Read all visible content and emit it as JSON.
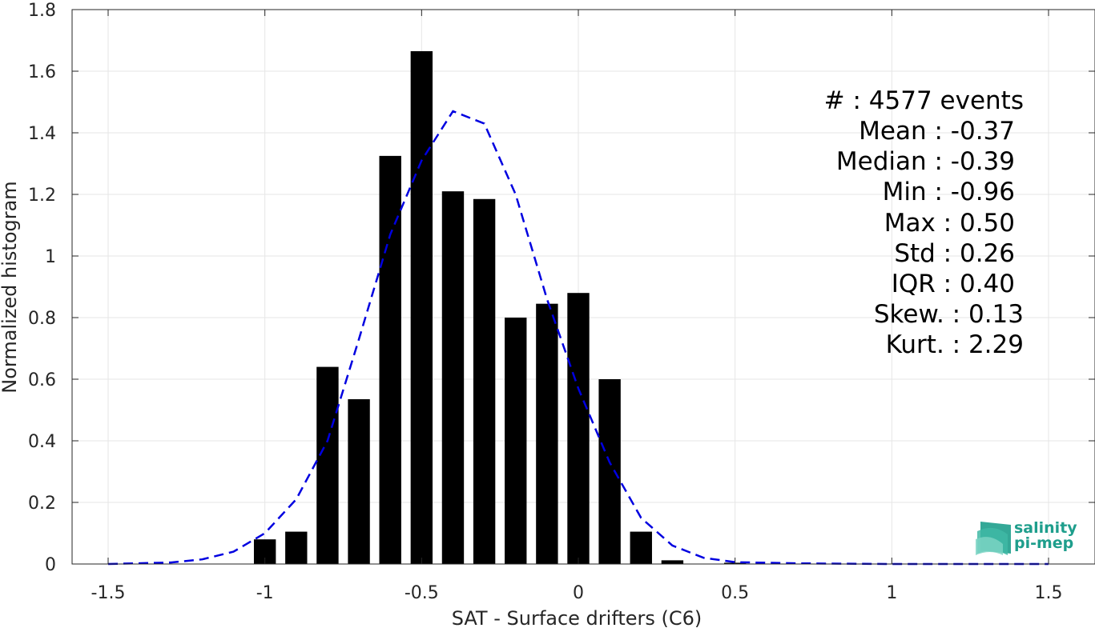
{
  "chart_data": {
    "type": "bar",
    "xlabel": "SAT - Surface drifters (C6)",
    "ylabel": "Normalized histogram",
    "xlim": [
      -1.5,
      1.5
    ],
    "ylim": [
      0,
      1.8
    ],
    "grid": true,
    "xticks": [
      -1.5,
      -1,
      -0.5,
      0,
      0.5,
      1,
      1.5
    ],
    "xtick_labels": [
      "-1.5",
      "-1",
      "-0.5",
      "0",
      "0.5",
      "1",
      "1.5"
    ],
    "yticks": [
      0,
      0.2,
      0.4,
      0.6,
      0.8,
      1,
      1.2,
      1.4,
      1.6,
      1.8
    ],
    "ytick_labels": [
      "0",
      "0.2",
      "0.4",
      "0.6",
      "0.8",
      "1",
      "1.2",
      "1.4",
      "1.6",
      "1.8"
    ],
    "bar_color": "#000000",
    "bar_width": 0.07,
    "bars": [
      {
        "x": -1.0,
        "y": 0.08
      },
      {
        "x": -0.9,
        "y": 0.105
      },
      {
        "x": -0.8,
        "y": 0.64
      },
      {
        "x": -0.7,
        "y": 0.535
      },
      {
        "x": -0.6,
        "y": 1.325
      },
      {
        "x": -0.5,
        "y": 1.665
      },
      {
        "x": -0.4,
        "y": 1.21
      },
      {
        "x": -0.3,
        "y": 1.185
      },
      {
        "x": -0.2,
        "y": 0.8
      },
      {
        "x": -0.1,
        "y": 0.845
      },
      {
        "x": 0.0,
        "y": 0.88
      },
      {
        "x": 0.1,
        "y": 0.6
      },
      {
        "x": 0.2,
        "y": 0.105
      },
      {
        "x": 0.3,
        "y": 0.012
      },
      {
        "x": 0.5,
        "y": 0.004
      }
    ],
    "fit_curve": {
      "color": "#0000e0",
      "style": "dashed",
      "x": [
        -1.5,
        -1.3,
        -1.2,
        -1.1,
        -1.0,
        -0.9,
        -0.8,
        -0.7,
        -0.6,
        -0.5,
        -0.4,
        -0.3,
        -0.2,
        -0.1,
        0.0,
        0.1,
        0.2,
        0.3,
        0.4,
        0.5,
        0.7,
        1.0,
        1.5
      ],
      "y": [
        0.0,
        0.005,
        0.015,
        0.04,
        0.1,
        0.21,
        0.4,
        0.73,
        1.07,
        1.31,
        1.47,
        1.43,
        1.2,
        0.86,
        0.57,
        0.33,
        0.15,
        0.06,
        0.02,
        0.006,
        0.002,
        0.0,
        0.0
      ]
    },
    "annotations": [
      "#  : 4577 events",
      "Mean : -0.37",
      "Median : -0.39",
      "Min : -0.96",
      "Max : 0.50",
      "Std : 0.26",
      "IQR : 0.40",
      "Skew. : 0.13",
      "Kurt. : 2.29"
    ]
  },
  "logo": {
    "line1": "salinity",
    "line2": "pi-mep",
    "color": "#1e9e8c"
  }
}
